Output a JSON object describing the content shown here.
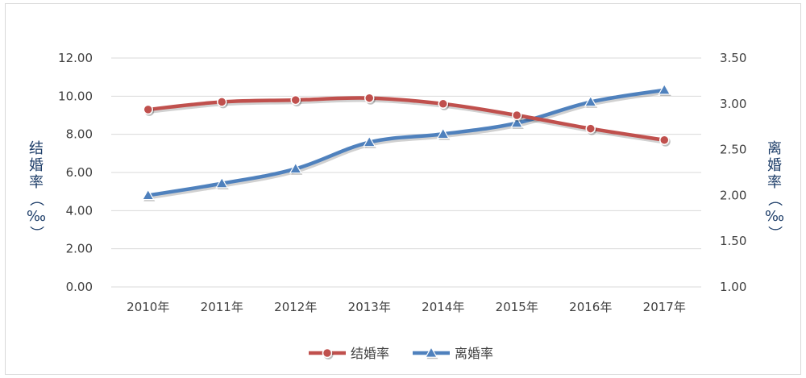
{
  "chart_data": {
    "type": "line",
    "categories": [
      "2010年",
      "2011年",
      "2012年",
      "2013年",
      "2014年",
      "2015年",
      "2016年",
      "2017年"
    ],
    "series": [
      {
        "name": "结婚率",
        "axis": "left",
        "color": "#c0504d",
        "marker": "circle",
        "values": [
          9.3,
          9.7,
          9.8,
          9.9,
          9.6,
          9.0,
          8.3,
          7.7
        ]
      },
      {
        "name": "离婚率",
        "axis": "right",
        "color": "#4f81bd",
        "marker": "triangle",
        "values": [
          2.0,
          2.13,
          2.29,
          2.58,
          2.67,
          2.79,
          3.02,
          3.15
        ]
      }
    ],
    "y_left": {
      "label_chars": [
        "结",
        "婚",
        "率",
        "（",
        "‰",
        "）"
      ],
      "ticks": [
        "0.00",
        "2.00",
        "4.00",
        "6.00",
        "8.00",
        "10.00",
        "12.00"
      ],
      "ylim": [
        0,
        12
      ]
    },
    "y_right": {
      "label_chars": [
        "离",
        "婚",
        "率",
        "（",
        "‰",
        "）"
      ],
      "ticks": [
        "1.00",
        "1.50",
        "2.00",
        "2.50",
        "3.00",
        "3.50"
      ],
      "ylim": [
        1,
        3.5
      ]
    },
    "grid": true,
    "legend_position": "bottom"
  }
}
